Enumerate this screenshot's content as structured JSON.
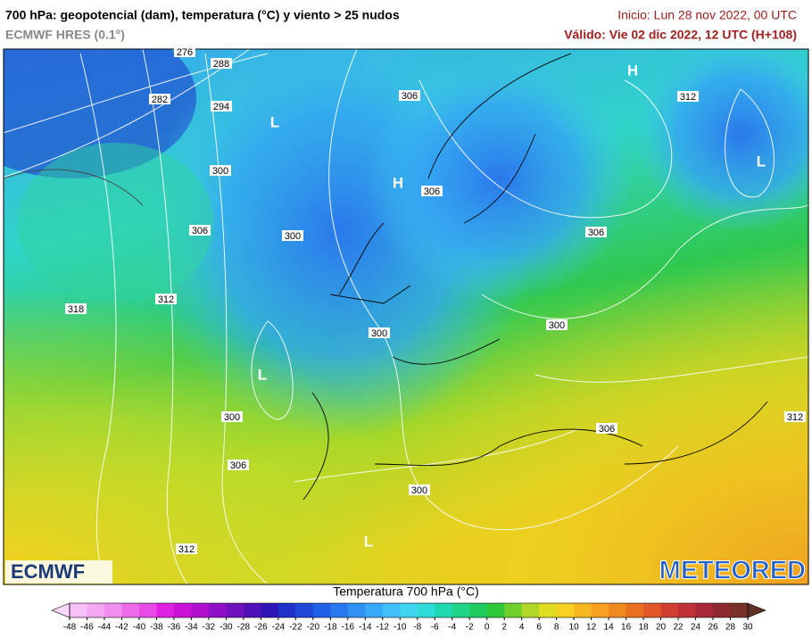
{
  "header": {
    "title": "700 hPa: geopotencial (dam), temperatura (°C) y viento > 25 nudos",
    "model": "ECMWF HRES (0.1°)",
    "init": "Inicio: Lun 28 nov 2022, 00 UTC",
    "valid": "Válido: Vie 02 dic 2022, 12 UTC (H+108)"
  },
  "map": {
    "contour_labels": [
      276,
      288,
      282,
      294,
      306,
      312,
      300,
      306,
      306,
      300,
      306,
      312,
      318,
      300,
      300,
      300,
      306,
      312,
      306,
      300,
      312
    ],
    "pressure_centers": [
      "L",
      "H",
      "H",
      "L",
      "L",
      "L"
    ],
    "logos": [
      "ECMWF",
      "METEORED"
    ]
  },
  "colorbar": {
    "title": "Temperatura 700 hPa (°C)",
    "ticks": [
      -48,
      -46,
      -44,
      -42,
      -40,
      -38,
      -36,
      -34,
      -32,
      -30,
      -28,
      -26,
      -24,
      -22,
      -20,
      -18,
      -16,
      -14,
      -12,
      -10,
      -8,
      -6,
      -4,
      -2,
      0,
      2,
      4,
      6,
      8,
      10,
      12,
      14,
      16,
      18,
      20,
      22,
      24,
      26,
      28,
      30
    ],
    "colors": [
      "#f8c0f8",
      "#f4a8f4",
      "#f08ef0",
      "#ec6cec",
      "#e84ae8",
      "#e020e0",
      "#cc10d8",
      "#b010d0",
      "#9010c8",
      "#7010c0",
      "#5010b8",
      "#3014b8",
      "#2030c8",
      "#2048d8",
      "#2060e8",
      "#2878f0",
      "#3090f4",
      "#38a8f8",
      "#40c0f8",
      "#40d4f0",
      "#30dcd8",
      "#20d8b0",
      "#20d488",
      "#20cc60",
      "#30c838",
      "#70d030",
      "#b0d828",
      "#e0dc20",
      "#f8d020",
      "#f8b820",
      "#f8a020",
      "#f08820",
      "#e87020",
      "#e05828",
      "#d04030",
      "#c03038",
      "#a82838",
      "#902830",
      "#783028"
    ],
    "under_color": "#fbd7fb",
    "over_color": "#603028"
  }
}
